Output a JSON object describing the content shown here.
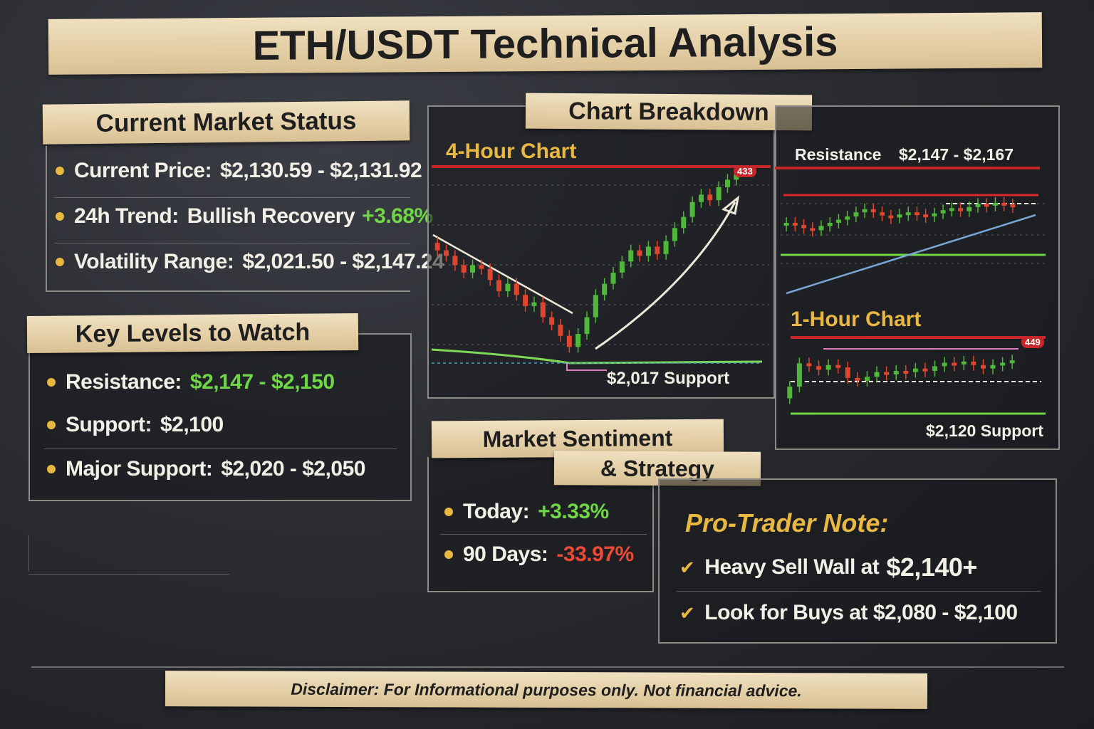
{
  "title": "ETH/USDT Technical Analysis",
  "market_status": {
    "heading": "Current Market Status",
    "rows": [
      {
        "label": "Current Price:",
        "value": "$2,130.59 - $2,131.92",
        "extra": ""
      },
      {
        "label": "24h Trend:",
        "value": "Bullish Recovery",
        "extra": "+3.68%"
      },
      {
        "label": "Volatility Range:",
        "value": "$2,021.50 - $2,147.24",
        "extra": ""
      }
    ]
  },
  "key_levels": {
    "heading": "Key Levels to Watch",
    "rows": [
      {
        "label": "Resistance:",
        "value": "$2,147 - $2,150"
      },
      {
        "label": "Support:",
        "value": "$2,100"
      },
      {
        "label": "Major Support:",
        "value": "$2,020 - $2,050"
      }
    ]
  },
  "chart_breakdown": {
    "heading": "Chart Breakdown",
    "chart4h_title": "4-Hour Chart",
    "chart4h_support": "$2,017 Support",
    "chart4h_badge": "433",
    "chart_top_resistance": "Resistance",
    "chart_top_resistance_value": "$2,147 - $2,167",
    "chart1h_title": "1-Hour Chart",
    "chart1h_badge": "449",
    "chart1h_support": "$2,120 Support"
  },
  "sentiment": {
    "heading_line1": "Market Sentiment",
    "heading_line2": "& Strategy",
    "today_label": "Today:",
    "today_value": "+3.33%",
    "days90_label": "90 Days:",
    "days90_value": "-33.97%"
  },
  "pro_note": {
    "heading": "Pro-Trader Note:",
    "item1_text": "Heavy Sell Wall at",
    "item1_value": "$2,140+",
    "item2_text": "Look for Buys at $2,080 - $2,100"
  },
  "disclaimer": "Disclaimer: For Informational purposes only. Not financial advice.",
  "chart_data": [
    {
      "type": "candlestick",
      "title": "4-Hour Chart",
      "candles": [
        {
          "o": 0.62,
          "c": 0.58
        },
        {
          "o": 0.58,
          "c": 0.55
        },
        {
          "o": 0.55,
          "c": 0.5
        },
        {
          "o": 0.5,
          "c": 0.46
        },
        {
          "o": 0.46,
          "c": 0.5
        },
        {
          "o": 0.5,
          "c": 0.48
        },
        {
          "o": 0.48,
          "c": 0.42
        },
        {
          "o": 0.42,
          "c": 0.36
        },
        {
          "o": 0.36,
          "c": 0.4
        },
        {
          "o": 0.4,
          "c": 0.34
        },
        {
          "o": 0.34,
          "c": 0.28
        },
        {
          "o": 0.28,
          "c": 0.3
        },
        {
          "o": 0.3,
          "c": 0.22
        },
        {
          "o": 0.22,
          "c": 0.18
        },
        {
          "o": 0.18,
          "c": 0.12
        },
        {
          "o": 0.12,
          "c": 0.06
        },
        {
          "o": 0.06,
          "c": 0.13
        },
        {
          "o": 0.13,
          "c": 0.22
        },
        {
          "o": 0.22,
          "c": 0.34
        },
        {
          "o": 0.34,
          "c": 0.4
        },
        {
          "o": 0.4,
          "c": 0.46
        },
        {
          "o": 0.46,
          "c": 0.52
        },
        {
          "o": 0.52,
          "c": 0.58
        },
        {
          "o": 0.58,
          "c": 0.55
        },
        {
          "o": 0.55,
          "c": 0.6
        },
        {
          "o": 0.6,
          "c": 0.56
        },
        {
          "o": 0.56,
          "c": 0.63
        },
        {
          "o": 0.63,
          "c": 0.7
        },
        {
          "o": 0.7,
          "c": 0.76
        },
        {
          "o": 0.76,
          "c": 0.84
        },
        {
          "o": 0.84,
          "c": 0.88
        },
        {
          "o": 0.88,
          "c": 0.85
        },
        {
          "o": 0.85,
          "c": 0.92
        },
        {
          "o": 0.92,
          "c": 0.96
        },
        {
          "o": 0.96,
          "c": 0.99
        }
      ]
    },
    {
      "type": "candlestick",
      "title": "Resistance $2,147 - $2,167",
      "candles": [
        {
          "o": 0.45,
          "c": 0.5
        },
        {
          "o": 0.5,
          "c": 0.46
        },
        {
          "o": 0.46,
          "c": 0.4
        },
        {
          "o": 0.4,
          "c": 0.36
        },
        {
          "o": 0.36,
          "c": 0.44
        },
        {
          "o": 0.44,
          "c": 0.5
        },
        {
          "o": 0.5,
          "c": 0.56
        },
        {
          "o": 0.56,
          "c": 0.62
        },
        {
          "o": 0.62,
          "c": 0.7
        },
        {
          "o": 0.7,
          "c": 0.76
        },
        {
          "o": 0.76,
          "c": 0.7
        },
        {
          "o": 0.7,
          "c": 0.64
        },
        {
          "o": 0.64,
          "c": 0.6
        },
        {
          "o": 0.6,
          "c": 0.66
        },
        {
          "o": 0.66,
          "c": 0.7
        },
        {
          "o": 0.7,
          "c": 0.66
        },
        {
          "o": 0.66,
          "c": 0.62
        },
        {
          "o": 0.62,
          "c": 0.68
        },
        {
          "o": 0.68,
          "c": 0.74
        },
        {
          "o": 0.74,
          "c": 0.78
        },
        {
          "o": 0.78,
          "c": 0.72
        },
        {
          "o": 0.72,
          "c": 0.8
        },
        {
          "o": 0.8,
          "c": 0.86
        },
        {
          "o": 0.86,
          "c": 0.84
        },
        {
          "o": 0.84,
          "c": 0.88
        },
        {
          "o": 0.88,
          "c": 0.85
        },
        {
          "o": 0.85,
          "c": 0.8
        }
      ]
    },
    {
      "type": "candlestick",
      "title": "1-Hour Chart",
      "candles": [
        {
          "o": 0.25,
          "c": 0.45
        },
        {
          "o": 0.45,
          "c": 0.85
        },
        {
          "o": 0.85,
          "c": 0.8
        },
        {
          "o": 0.8,
          "c": 0.74
        },
        {
          "o": 0.74,
          "c": 0.82
        },
        {
          "o": 0.82,
          "c": 0.78
        },
        {
          "o": 0.78,
          "c": 0.6
        },
        {
          "o": 0.6,
          "c": 0.55
        },
        {
          "o": 0.55,
          "c": 0.62
        },
        {
          "o": 0.62,
          "c": 0.7
        },
        {
          "o": 0.7,
          "c": 0.66
        },
        {
          "o": 0.66,
          "c": 0.72
        },
        {
          "o": 0.72,
          "c": 0.7
        },
        {
          "o": 0.7,
          "c": 0.76
        },
        {
          "o": 0.76,
          "c": 0.72
        },
        {
          "o": 0.72,
          "c": 0.8
        },
        {
          "o": 0.8,
          "c": 0.86
        },
        {
          "o": 0.86,
          "c": 0.84
        },
        {
          "o": 0.84,
          "c": 0.88
        },
        {
          "o": 0.88,
          "c": 0.82
        },
        {
          "o": 0.82,
          "c": 0.76
        },
        {
          "o": 0.76,
          "c": 0.82
        },
        {
          "o": 0.82,
          "c": 0.86
        },
        {
          "o": 0.86,
          "c": 0.9
        }
      ]
    }
  ]
}
